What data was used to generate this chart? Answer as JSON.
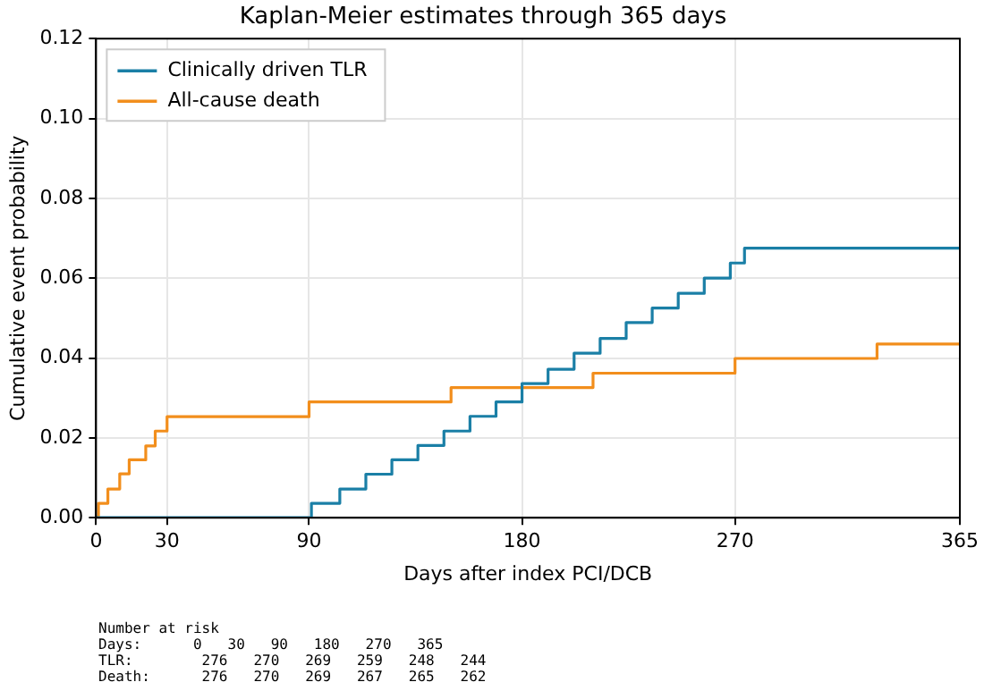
{
  "chart_data": {
    "type": "step",
    "title": "Kaplan-Meier estimates through 365 days",
    "xlabel": "Days after index PCI/DCB",
    "ylabel": "Cumulative event probability",
    "xlim": [
      0,
      365
    ],
    "xticks": [
      0,
      30,
      90,
      180,
      270,
      365
    ],
    "ylim": [
      0,
      0.12
    ],
    "yticks": [
      {
        "value": 0,
        "label": "0.00"
      },
      {
        "value": 0.02,
        "label": "0.02"
      },
      {
        "value": 0.04,
        "label": "0.04"
      },
      {
        "value": 0.06,
        "label": "0.06"
      },
      {
        "value": 0.08,
        "label": "0.08"
      },
      {
        "value": 0.1,
        "label": "0.10"
      },
      {
        "value": 0.12,
        "label": "0.12"
      }
    ],
    "grid": true,
    "legend": "top left",
    "series": [
      {
        "name": "Clinically driven TLR",
        "color": "#1a7fa6",
        "x": [
          0,
          91,
          103,
          114,
          125,
          136,
          147,
          158,
          169,
          180,
          191,
          202,
          213,
          224,
          235,
          246,
          257,
          268,
          274,
          365
        ],
        "values": [
          0,
          0.0036,
          0.0072,
          0.0109,
          0.0145,
          0.0181,
          0.0217,
          0.0254,
          0.029,
          0.0336,
          0.0372,
          0.0412,
          0.0449,
          0.0489,
          0.0525,
          0.0562,
          0.06,
          0.0638,
          0.0675,
          0.0675
        ]
      },
      {
        "name": "All-cause death",
        "color": "#f28e1c",
        "x": [
          0,
          1,
          5,
          10,
          14,
          21,
          25,
          30,
          90,
          150,
          210,
          270,
          330,
          365
        ],
        "values": [
          0,
          0.0036,
          0.0072,
          0.011,
          0.0145,
          0.018,
          0.0217,
          0.0253,
          0.029,
          0.0326,
          0.0362,
          0.0399,
          0.0435,
          0.0435
        ]
      }
    ],
    "annotations": [
      "Number at risk",
      "Days:      0   30   90   180   270   365",
      "TLR:        276   270   269   259   248   244",
      "Death:      276   270   269   267   265   262"
    ]
  }
}
